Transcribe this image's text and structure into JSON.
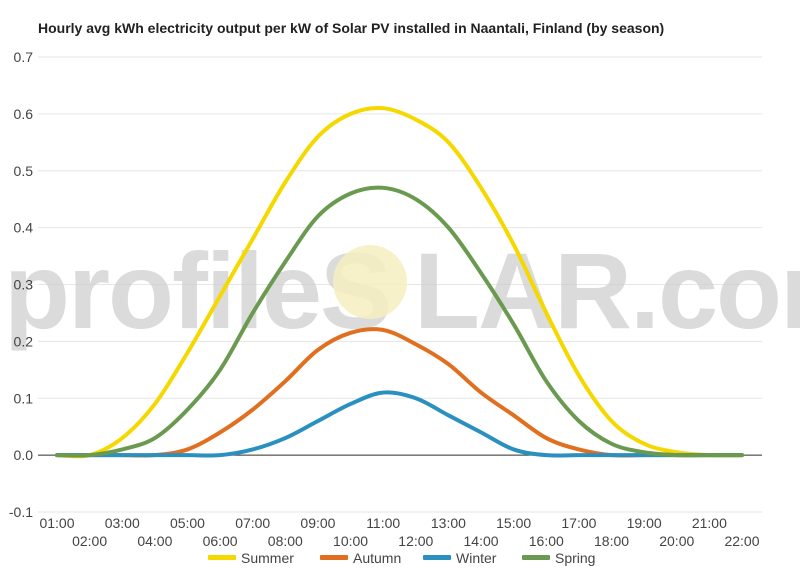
{
  "watermark": {
    "left_text": "profileS",
    "right_text": "LAR.com"
  },
  "chart_data": {
    "type": "line",
    "title": "Hourly avg kWh electricity output per kW of Solar PV installed in Naantali, Finland (by season)",
    "xlabel": "",
    "ylabel": "",
    "ylim": [
      -0.1,
      0.7
    ],
    "yticks": [
      "-0.1",
      "0.0",
      "0.1",
      "0.2",
      "0.3",
      "0.4",
      "0.5",
      "0.6",
      "0.7"
    ],
    "categories": [
      "01:00",
      "02:00",
      "03:00",
      "04:00",
      "05:00",
      "06:00",
      "07:00",
      "08:00",
      "09:00",
      "10:00",
      "11:00",
      "12:00",
      "13:00",
      "14:00",
      "15:00",
      "16:00",
      "17:00",
      "18:00",
      "19:00",
      "20:00",
      "21:00",
      "22:00"
    ],
    "grid": true,
    "legend_position": "bottom",
    "series": [
      {
        "name": "Summer",
        "color": "#f5d800",
        "values": [
          0.0,
          0.0,
          0.03,
          0.09,
          0.18,
          0.28,
          0.38,
          0.48,
          0.56,
          0.6,
          0.61,
          0.59,
          0.55,
          0.47,
          0.37,
          0.25,
          0.14,
          0.06,
          0.02,
          0.005,
          0.0,
          0.0
        ]
      },
      {
        "name": "Autumn",
        "color": "#e07020",
        "values": [
          0.0,
          0.0,
          0.0,
          0.0,
          0.01,
          0.04,
          0.08,
          0.13,
          0.185,
          0.215,
          0.22,
          0.195,
          0.16,
          0.11,
          0.07,
          0.03,
          0.01,
          0.0,
          0.0,
          0.0,
          0.0,
          0.0
        ]
      },
      {
        "name": "Winter",
        "color": "#2a90c0",
        "values": [
          0.0,
          0.0,
          0.0,
          0.0,
          0.0,
          0.0,
          0.01,
          0.03,
          0.06,
          0.09,
          0.11,
          0.1,
          0.07,
          0.04,
          0.01,
          0.0,
          0.0,
          0.0,
          0.0,
          0.0,
          0.0,
          0.0
        ]
      },
      {
        "name": "Spring",
        "color": "#6a9a50",
        "values": [
          0.0,
          0.0,
          0.01,
          0.03,
          0.08,
          0.15,
          0.25,
          0.34,
          0.42,
          0.46,
          0.47,
          0.45,
          0.4,
          0.32,
          0.23,
          0.13,
          0.06,
          0.02,
          0.005,
          0.0,
          0.0,
          0.0
        ]
      }
    ]
  }
}
